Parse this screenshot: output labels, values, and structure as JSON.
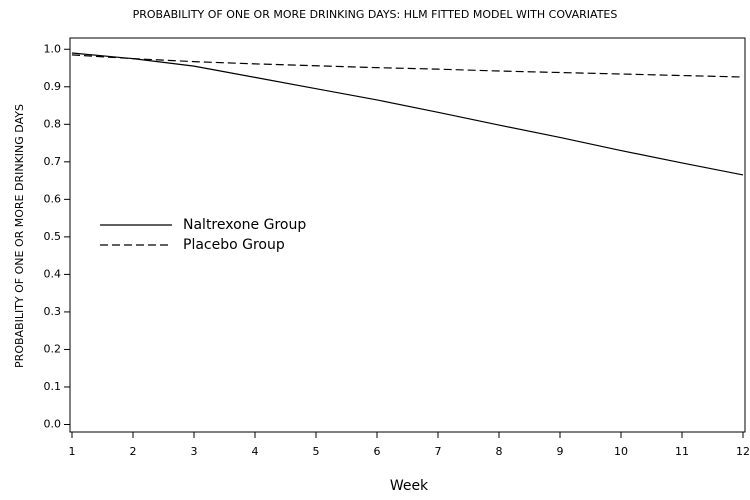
{
  "chart_data": {
    "type": "line",
    "title": "PROBABILITY OF ONE OR MORE DRINKING DAYS: HLM FITTED MODEL WITH COVARIATES",
    "x_label": "Week",
    "y_label": "PROBABILITY OF ONE OR MORE DRINKING DAYS",
    "x": [
      1,
      2,
      3,
      4,
      5,
      6,
      7,
      8,
      9,
      10,
      11,
      12
    ],
    "series": [
      {
        "name": "Naltrexone Group",
        "color": "#000000",
        "line_style": "solid",
        "values": [
          0.99,
          0.975,
          0.955,
          0.925,
          0.895,
          0.865,
          0.832,
          0.798,
          0.765,
          0.73,
          0.697,
          0.665
        ]
      },
      {
        "name": "Placebo Group",
        "color": "#000000",
        "line_style": "dashed",
        "values": [
          0.985,
          0.975,
          0.967,
          0.961,
          0.956,
          0.951,
          0.947,
          0.942,
          0.938,
          0.934,
          0.93,
          0.926
        ]
      }
    ],
    "xlim": [
      1,
      12
    ],
    "xticks": [
      1,
      2,
      3,
      4,
      5,
      6,
      7,
      8,
      9,
      10,
      11,
      12
    ],
    "ylim": [
      -0.02,
      1.03
    ],
    "yticks": [
      {
        "value": 0,
        "label": "0.0"
      },
      0.1,
      0.2,
      0.3,
      0.4,
      0.5,
      0.6,
      0.7,
      0.8,
      0.9,
      {
        "value": 1,
        "label": "1.0"
      }
    ],
    "grid": false,
    "legend": "left"
  }
}
